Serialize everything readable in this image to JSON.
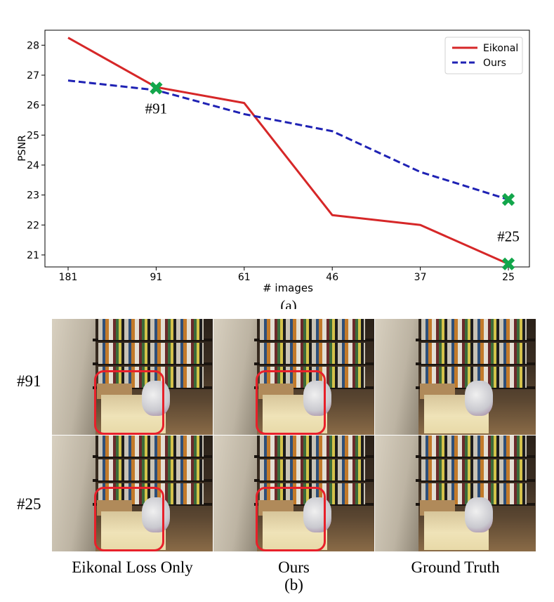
{
  "chart_data": {
    "type": "line",
    "title": "",
    "xlabel": "# images",
    "ylabel": "PSNR",
    "categories": [
      "181",
      "91",
      "61",
      "46",
      "37",
      "25"
    ],
    "ylim": [
      20.6,
      28.5
    ],
    "yticks": [
      21,
      22,
      23,
      24,
      25,
      26,
      27,
      28
    ],
    "grid": false,
    "legend": "top-right",
    "series": [
      {
        "name": "Eikonal",
        "color": "#d62728",
        "style": "solid",
        "values": [
          28.25,
          26.6,
          26.07,
          22.33,
          22.0,
          20.7
        ]
      },
      {
        "name": "Ours",
        "color": "#1f22b4",
        "style": "dashed",
        "values": [
          26.82,
          26.5,
          25.7,
          25.13,
          23.77,
          22.85
        ]
      }
    ],
    "markers": [
      {
        "x": "91",
        "y": 26.57,
        "label": "#91",
        "color": "#12a64b"
      },
      {
        "x": "25",
        "y": 22.85,
        "label": "",
        "color": "#12a64b"
      },
      {
        "x": "25",
        "y": 20.7,
        "label": "#25",
        "color": "#12a64b"
      }
    ],
    "caption": "(a)"
  },
  "figure_b": {
    "rows": [
      "#91",
      "#25"
    ],
    "columns": [
      "Eikonal Loss Only",
      "Ours",
      "Ground Truth"
    ],
    "caption": "(b)",
    "highlight_color": "#e8202a"
  }
}
